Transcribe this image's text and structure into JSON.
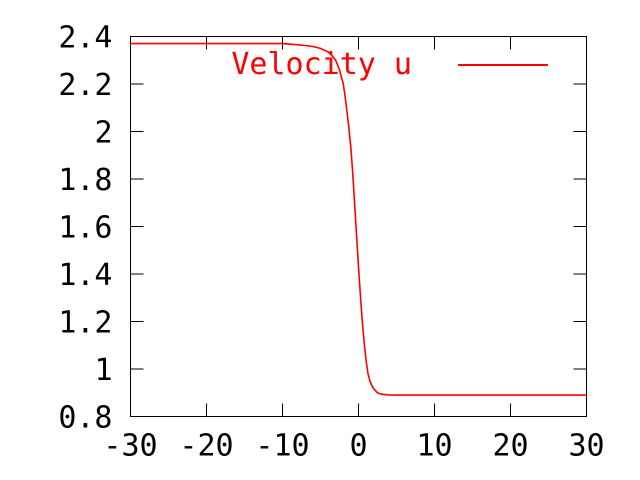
{
  "chart_data": {
    "type": "line",
    "title": "",
    "xlabel": "",
    "ylabel": "",
    "xlim": [
      -30,
      30
    ],
    "ylim": [
      0.8,
      2.4
    ],
    "grid": false,
    "legend_position": "top-right-inside",
    "background_color": "#ffffff",
    "axis_color": "#000000",
    "xticks": [
      -30,
      -20,
      -10,
      0,
      10,
      20,
      30
    ],
    "xtick_labels": [
      "-30",
      "-20",
      "-10",
      "0",
      "10",
      "20",
      "30"
    ],
    "yticks": [
      0.8,
      1.0,
      1.2,
      1.4,
      1.6,
      1.8,
      2.0,
      2.2,
      2.4
    ],
    "ytick_labels": [
      "0.8",
      "1",
      "1.2",
      "1.4",
      "1.6",
      "1.8",
      "2",
      "2.2",
      "2.4"
    ],
    "series": [
      {
        "name": "Velocity u",
        "color": "#ff0000",
        "x": [
          -30,
          -20,
          -15,
          -10,
          -8,
          -7,
          -6,
          -5,
          -4,
          -3.5,
          -3,
          -2.5,
          -2,
          -1.75,
          -1.5,
          -1.25,
          -1,
          -0.75,
          -0.5,
          -0.25,
          0,
          0.25,
          0.5,
          0.75,
          1,
          1.25,
          1.5,
          1.75,
          2,
          2.5,
          3,
          4,
          5,
          6,
          8,
          10,
          15,
          20,
          30
        ],
        "y": [
          2.37,
          2.37,
          2.37,
          2.37,
          2.365,
          2.362,
          2.358,
          2.35,
          2.335,
          2.32,
          2.3,
          2.26,
          2.2,
          2.145,
          2.08,
          2.01,
          1.93,
          1.82,
          1.69,
          1.56,
          1.43,
          1.31,
          1.2,
          1.11,
          1.035,
          0.98,
          0.95,
          0.93,
          0.917,
          0.9,
          0.894,
          0.891,
          0.89,
          0.89,
          0.89,
          0.89,
          0.89,
          0.89,
          0.89
        ]
      }
    ]
  }
}
